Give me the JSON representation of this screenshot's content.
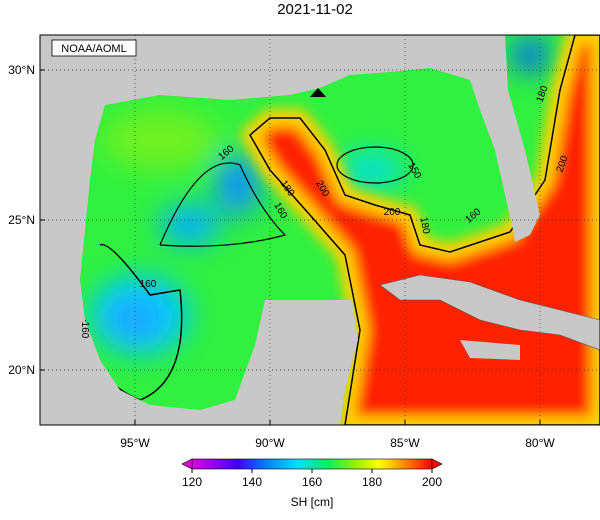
{
  "title": "2021-11-02",
  "credit": "NOAA/AOML",
  "lat_ticks": [
    {
      "value": 30,
      "label": "30°N"
    },
    {
      "value": 25,
      "label": "25°N"
    },
    {
      "value": 20,
      "label": "20°N"
    }
  ],
  "lon_ticks": [
    {
      "value": -95,
      "label": "95°W"
    },
    {
      "value": -90,
      "label": "90°W"
    },
    {
      "value": -85,
      "label": "85°W"
    },
    {
      "value": -80,
      "label": "80°W"
    }
  ],
  "contour_labels": [
    "160",
    "180",
    "160",
    "200",
    "160",
    "160",
    "150",
    "180",
    "180",
    "200",
    "160",
    "200"
  ],
  "colorbar": {
    "label": "SH [cm]",
    "range": [
      120,
      200
    ],
    "ticks": [
      120,
      140,
      160,
      180,
      200
    ]
  }
}
